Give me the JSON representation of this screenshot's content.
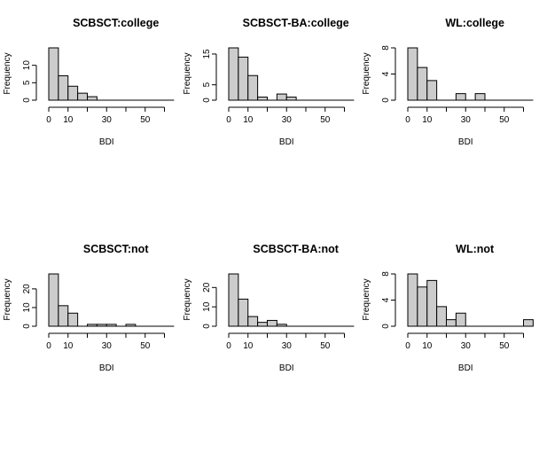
{
  "chart_data": [
    {
      "type": "bar",
      "title": "SCBSCT:college",
      "xlabel": "BDI",
      "ylabel": "Frequency",
      "bin_width": 5,
      "x_ticks": [
        0,
        10,
        30,
        50
      ],
      "y_ticks": [
        0,
        5,
        10
      ],
      "ylim": [
        0,
        15
      ],
      "values": [
        15,
        7,
        4,
        2,
        1,
        0,
        0,
        0,
        0,
        0,
        0,
        0,
        0
      ]
    },
    {
      "type": "bar",
      "title": "SCBSCT-BA:college",
      "xlabel": "BDI",
      "ylabel": "Frequency",
      "bin_width": 5,
      "x_ticks": [
        0,
        10,
        30,
        50
      ],
      "y_ticks": [
        0,
        5,
        15
      ],
      "ylim": [
        0,
        17
      ],
      "values": [
        17,
        14,
        8,
        1,
        0,
        2,
        1,
        0,
        0,
        0,
        0,
        0,
        0
      ]
    },
    {
      "type": "bar",
      "title": "WL:college",
      "xlabel": "BDI",
      "ylabel": "Frequency",
      "bin_width": 5,
      "x_ticks": [
        0,
        10,
        30,
        50
      ],
      "y_ticks": [
        0,
        4,
        8
      ],
      "ylim": [
        0,
        8
      ],
      "values": [
        8,
        5,
        3,
        0,
        0,
        1,
        0,
        1,
        0,
        0,
        0,
        0,
        0
      ]
    },
    {
      "type": "bar",
      "title": "SCBSCT:not",
      "xlabel": "BDI",
      "ylabel": "Frequency",
      "bin_width": 5,
      "x_ticks": [
        0,
        10,
        30,
        50
      ],
      "y_ticks": [
        0,
        10,
        20
      ],
      "ylim": [
        0,
        28
      ],
      "values": [
        28,
        11,
        7,
        0,
        1,
        1,
        1,
        0,
        1,
        0,
        0,
        0,
        0
      ]
    },
    {
      "type": "bar",
      "title": "SCBSCT-BA:not",
      "xlabel": "BDI",
      "ylabel": "Frequency",
      "bin_width": 5,
      "x_ticks": [
        0,
        10,
        30,
        50
      ],
      "y_ticks": [
        0,
        10,
        20
      ],
      "ylim": [
        0,
        27
      ],
      "values": [
        27,
        14,
        5,
        2,
        3,
        1,
        0,
        0,
        0,
        0,
        0,
        0,
        0
      ]
    },
    {
      "type": "bar",
      "title": "WL:not",
      "xlabel": "BDI",
      "ylabel": "Frequency",
      "bin_width": 5,
      "x_ticks": [
        0,
        10,
        30,
        50
      ],
      "y_ticks": [
        0,
        4,
        8
      ],
      "ylim": [
        0,
        8
      ],
      "values": [
        8,
        6,
        7,
        3,
        1,
        2,
        0,
        0,
        0,
        0,
        0,
        0,
        1
      ]
    }
  ],
  "colors": {
    "bar_fill": "#cccccc",
    "bar_stroke": "#000000"
  }
}
